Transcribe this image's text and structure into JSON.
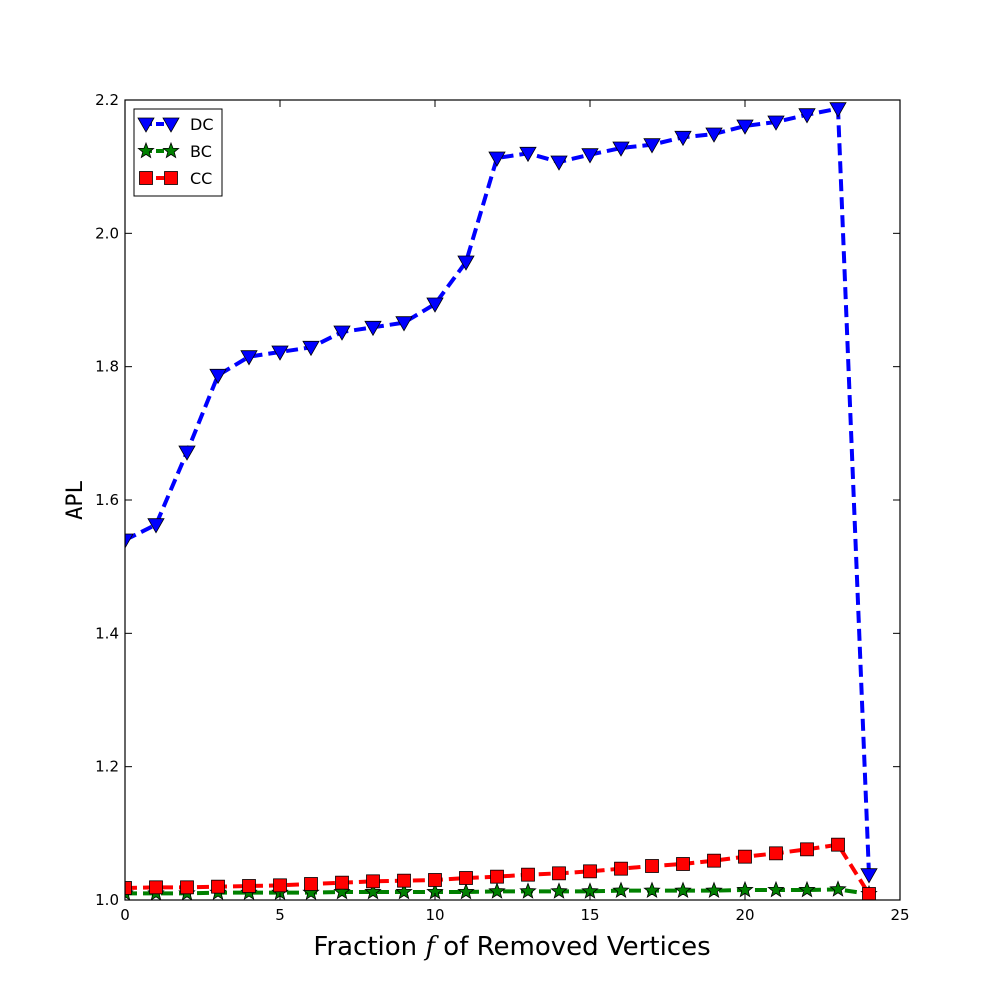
{
  "chart_data": {
    "type": "line",
    "xlabel_prefix": "Fraction ",
    "xlabel_symbol": "f",
    "xlabel_suffix": " of Removed Vertices",
    "ylabel": "APL",
    "xlim": [
      0,
      25
    ],
    "ylim": [
      1.0,
      2.2
    ],
    "xticks": [
      0,
      5,
      10,
      15,
      20,
      25
    ],
    "xtick_labels": [
      "0",
      "5",
      "10",
      "15",
      "20",
      "25"
    ],
    "yticks": [
      1.0,
      1.2,
      1.4,
      1.6,
      1.8,
      2.0,
      2.2
    ],
    "ytick_labels": [
      "1.0",
      "1.2",
      "1.4",
      "1.6",
      "1.8",
      "2.0",
      "2.2"
    ],
    "grid": false,
    "legend_position": "top-left",
    "x": [
      0,
      1,
      2,
      3,
      4,
      5,
      6,
      7,
      8,
      9,
      10,
      11,
      12,
      13,
      14,
      15,
      16,
      17,
      18,
      19,
      20,
      21,
      22,
      23,
      24
    ],
    "series": [
      {
        "name": "DC",
        "color": "#0000ff",
        "marker": "triangle-down",
        "line_style": "dashed",
        "values": [
          1.54,
          1.563,
          1.672,
          1.787,
          1.815,
          1.822,
          1.829,
          1.852,
          1.859,
          1.866,
          1.894,
          1.957,
          2.113,
          2.12,
          2.107,
          2.118,
          2.128,
          2.133,
          2.144,
          2.149,
          2.161,
          2.167,
          2.178,
          2.187,
          1.038
        ]
      },
      {
        "name": "BC",
        "color": "#008000",
        "marker": "star",
        "line_style": "dashed",
        "values": [
          1.01,
          1.01,
          1.01,
          1.011,
          1.011,
          1.011,
          1.011,
          1.012,
          1.012,
          1.012,
          1.012,
          1.012,
          1.013,
          1.013,
          1.013,
          1.013,
          1.014,
          1.014,
          1.014,
          1.014,
          1.015,
          1.015,
          1.015,
          1.016,
          1.009
        ]
      },
      {
        "name": "CC",
        "color": "#ff0000",
        "marker": "square",
        "line_style": "dashed",
        "values": [
          1.018,
          1.019,
          1.019,
          1.02,
          1.021,
          1.022,
          1.024,
          1.026,
          1.028,
          1.029,
          1.03,
          1.033,
          1.035,
          1.038,
          1.04,
          1.043,
          1.047,
          1.051,
          1.054,
          1.059,
          1.065,
          1.07,
          1.076,
          1.083,
          1.009
        ]
      }
    ]
  }
}
